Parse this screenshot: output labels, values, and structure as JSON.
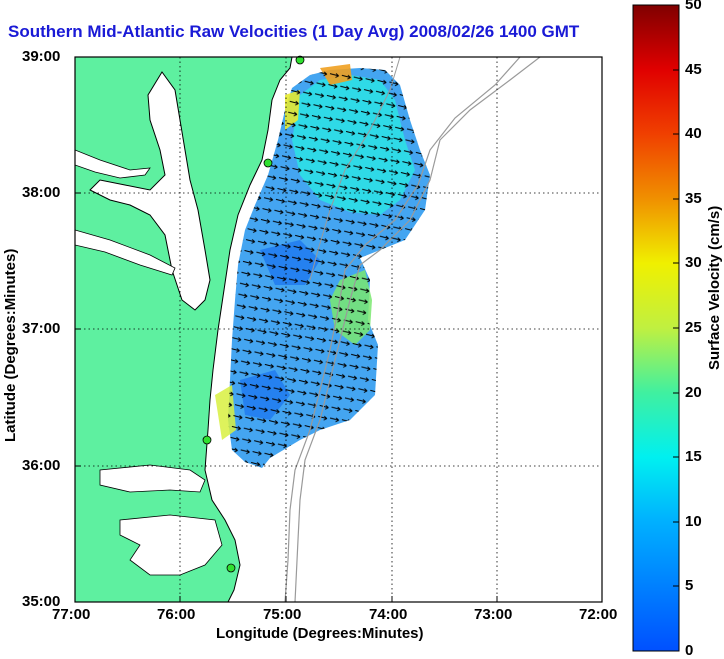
{
  "title": "Southern Mid-Atlantic Raw Velocities (1 Day Avg) 2008/02/26 1400 GMT",
  "xlabel": "Longitude (Degrees:Minutes)",
  "ylabel": "Latitude (Degrees:Minutes)",
  "colorbar_label": "Surface Velocity (cm/s)",
  "x_ticks": [
    "77:00",
    "76:00",
    "75:00",
    "74:00",
    "73:00",
    "72:00"
  ],
  "y_ticks": [
    "39:00",
    "38:00",
    "37:00",
    "36:00",
    "35:00"
  ],
  "colorbar_ticks": [
    "0",
    "5",
    "10",
    "15",
    "20",
    "25",
    "30",
    "35",
    "40",
    "45",
    "50"
  ],
  "colors": {
    "land": "#5ef0a0",
    "title": "#1a1ad6",
    "coast": "#000000",
    "bathy": "#9a9a9a"
  },
  "chart_data": {
    "type": "heatmap",
    "xlim": [
      "77:00",
      "72:00"
    ],
    "ylim": [
      "35:00",
      "39:00"
    ],
    "colorbar_range": [
      0,
      50
    ],
    "grid": "dotted",
    "stations": [
      "station-north",
      "station-delmarva",
      "station-virginia-beach",
      "station-outer-banks"
    ]
  }
}
